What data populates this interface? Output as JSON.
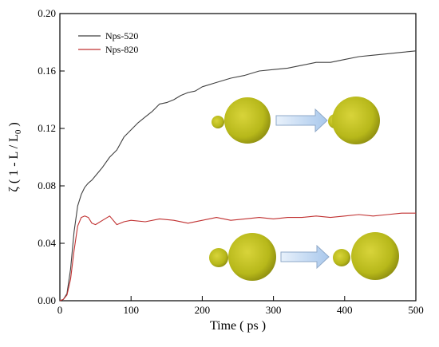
{
  "chart_data": {
    "type": "line",
    "xlabel": "Time ( ps )",
    "ylabel": "ζ ( 1 - L / L",
    "ylabel_subscript": "0",
    "ylabel_suffix": " )",
    "xlim": [
      0,
      500
    ],
    "ylim": [
      0,
      0.2
    ],
    "xticks": [
      0,
      100,
      200,
      300,
      400,
      500
    ],
    "yticks": [
      0.0,
      0.04,
      0.08,
      0.12,
      0.16,
      0.2
    ],
    "xtick_labels": [
      "0",
      "100",
      "200",
      "300",
      "400",
      "500"
    ],
    "ytick_labels": [
      "0.00",
      "0.04",
      "0.08",
      "0.12",
      "0.16",
      "0.20"
    ],
    "grid": false,
    "legend_position": "top-left",
    "series": [
      {
        "name": "Nps-520",
        "color": "#404040",
        "x": [
          0,
          5,
          10,
          15,
          20,
          25,
          30,
          35,
          40,
          45,
          50,
          60,
          70,
          80,
          90,
          100,
          110,
          120,
          130,
          140,
          150,
          160,
          170,
          180,
          190,
          200,
          220,
          240,
          260,
          280,
          300,
          320,
          340,
          360,
          380,
          400,
          420,
          440,
          460,
          480,
          500
        ],
        "y": [
          0.0,
          0.001,
          0.005,
          0.022,
          0.048,
          0.066,
          0.074,
          0.079,
          0.082,
          0.084,
          0.087,
          0.093,
          0.1,
          0.105,
          0.114,
          0.119,
          0.124,
          0.128,
          0.132,
          0.137,
          0.138,
          0.14,
          0.143,
          0.145,
          0.146,
          0.149,
          0.152,
          0.155,
          0.157,
          0.16,
          0.161,
          0.162,
          0.164,
          0.166,
          0.166,
          0.168,
          0.17,
          0.171,
          0.172,
          0.173,
          0.174
        ]
      },
      {
        "name": "Nps-820",
        "color": "#c03030",
        "x": [
          0,
          5,
          10,
          15,
          20,
          25,
          30,
          35,
          40,
          45,
          50,
          60,
          70,
          80,
          90,
          100,
          120,
          140,
          160,
          180,
          200,
          220,
          240,
          260,
          280,
          300,
          320,
          340,
          360,
          380,
          400,
          420,
          440,
          460,
          480,
          500
        ],
        "y": [
          0.0,
          0.001,
          0.004,
          0.015,
          0.035,
          0.052,
          0.058,
          0.059,
          0.058,
          0.054,
          0.053,
          0.056,
          0.059,
          0.053,
          0.055,
          0.056,
          0.055,
          0.057,
          0.056,
          0.054,
          0.056,
          0.058,
          0.056,
          0.057,
          0.058,
          0.057,
          0.058,
          0.058,
          0.059,
          0.058,
          0.059,
          0.06,
          0.059,
          0.06,
          0.061,
          0.061
        ]
      }
    ]
  }
}
